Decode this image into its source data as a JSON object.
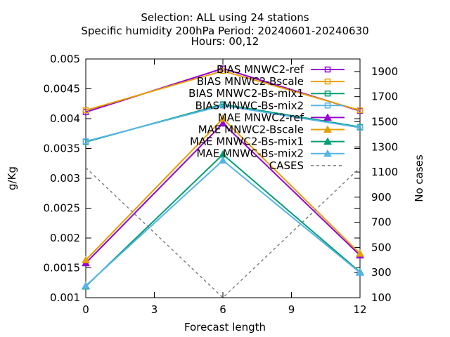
{
  "chart_data": {
    "type": "line",
    "title_lines": [
      "Selection: ALL using    24 stations",
      "Specific humidity 200hPa   Period: 20240601-20240630",
      "Hours: 00,12"
    ],
    "xlabel": "Forecast length",
    "ylabel": "g/Kg",
    "y2label": "No cases",
    "x": [
      0,
      6,
      12
    ],
    "xlim": [
      0,
      12
    ],
    "xticks": [
      "0",
      "3",
      "6",
      "9",
      "12"
    ],
    "xtick_values": [
      0,
      3,
      6,
      9,
      12
    ],
    "ylim": [
      0.001,
      0.005
    ],
    "yticks": [
      "0.001",
      "0.0015",
      "0.002",
      "0.0025",
      "0.003",
      "0.0035",
      "0.004",
      "0.0045",
      "0.005"
    ],
    "ytick_values": [
      0.001,
      0.0015,
      0.002,
      0.0025,
      0.003,
      0.0035,
      0.004,
      0.0045,
      0.005
    ],
    "y2lim": [
      100,
      2000
    ],
    "y2ticks": [
      "100",
      "300",
      "500",
      "700",
      "900",
      "1100",
      "1300",
      "1500",
      "1700",
      "1900"
    ],
    "y2tick_values": [
      100,
      300,
      500,
      700,
      900,
      1100,
      1300,
      1500,
      1700,
      1900
    ],
    "legend_position": "top-right",
    "grid": false,
    "series": [
      {
        "name": "BIAS MNWC2-ref",
        "color": "#9400d3",
        "marker": "square-open",
        "values": [
          0.00411,
          0.00484,
          0.00413
        ]
      },
      {
        "name": "BIAS MNWC2-Bscale",
        "color": "#e69f00",
        "marker": "square-open",
        "values": [
          0.00414,
          0.0048,
          0.00414
        ]
      },
      {
        "name": "BIAS MNWC2-Bs-mix1",
        "color": "#009e73",
        "marker": "square-open",
        "values": [
          0.00361,
          0.00424,
          0.00386
        ]
      },
      {
        "name": "BIAS MNWC-Bs-mix2",
        "color": "#56b4e9",
        "marker": "square-open",
        "values": [
          0.00362,
          0.00422,
          0.00385
        ]
      },
      {
        "name": "MAE MNWC2-ref",
        "color": "#9400d3",
        "marker": "triangle-filled",
        "values": [
          0.00158,
          0.00392,
          0.00171
        ]
      },
      {
        "name": "MAE MNWC2-Bscale",
        "color": "#e69f00",
        "marker": "triangle-filled",
        "values": [
          0.00163,
          0.004,
          0.00174
        ]
      },
      {
        "name": "MAE MNWC2-Bs-mix1",
        "color": "#009e73",
        "marker": "triangle-filled",
        "values": [
          0.00119,
          0.0034,
          0.00143
        ]
      },
      {
        "name": "MAE MNWC-Bs-mix2",
        "color": "#56b4e9",
        "marker": "triangle-filled",
        "values": [
          0.0012,
          0.0033,
          0.00142
        ]
      },
      {
        "name": "CASES",
        "color": "#808080",
        "marker": "none",
        "dashed": true,
        "axis": "y2",
        "values": [
          1135,
          100,
          1135
        ]
      }
    ]
  }
}
